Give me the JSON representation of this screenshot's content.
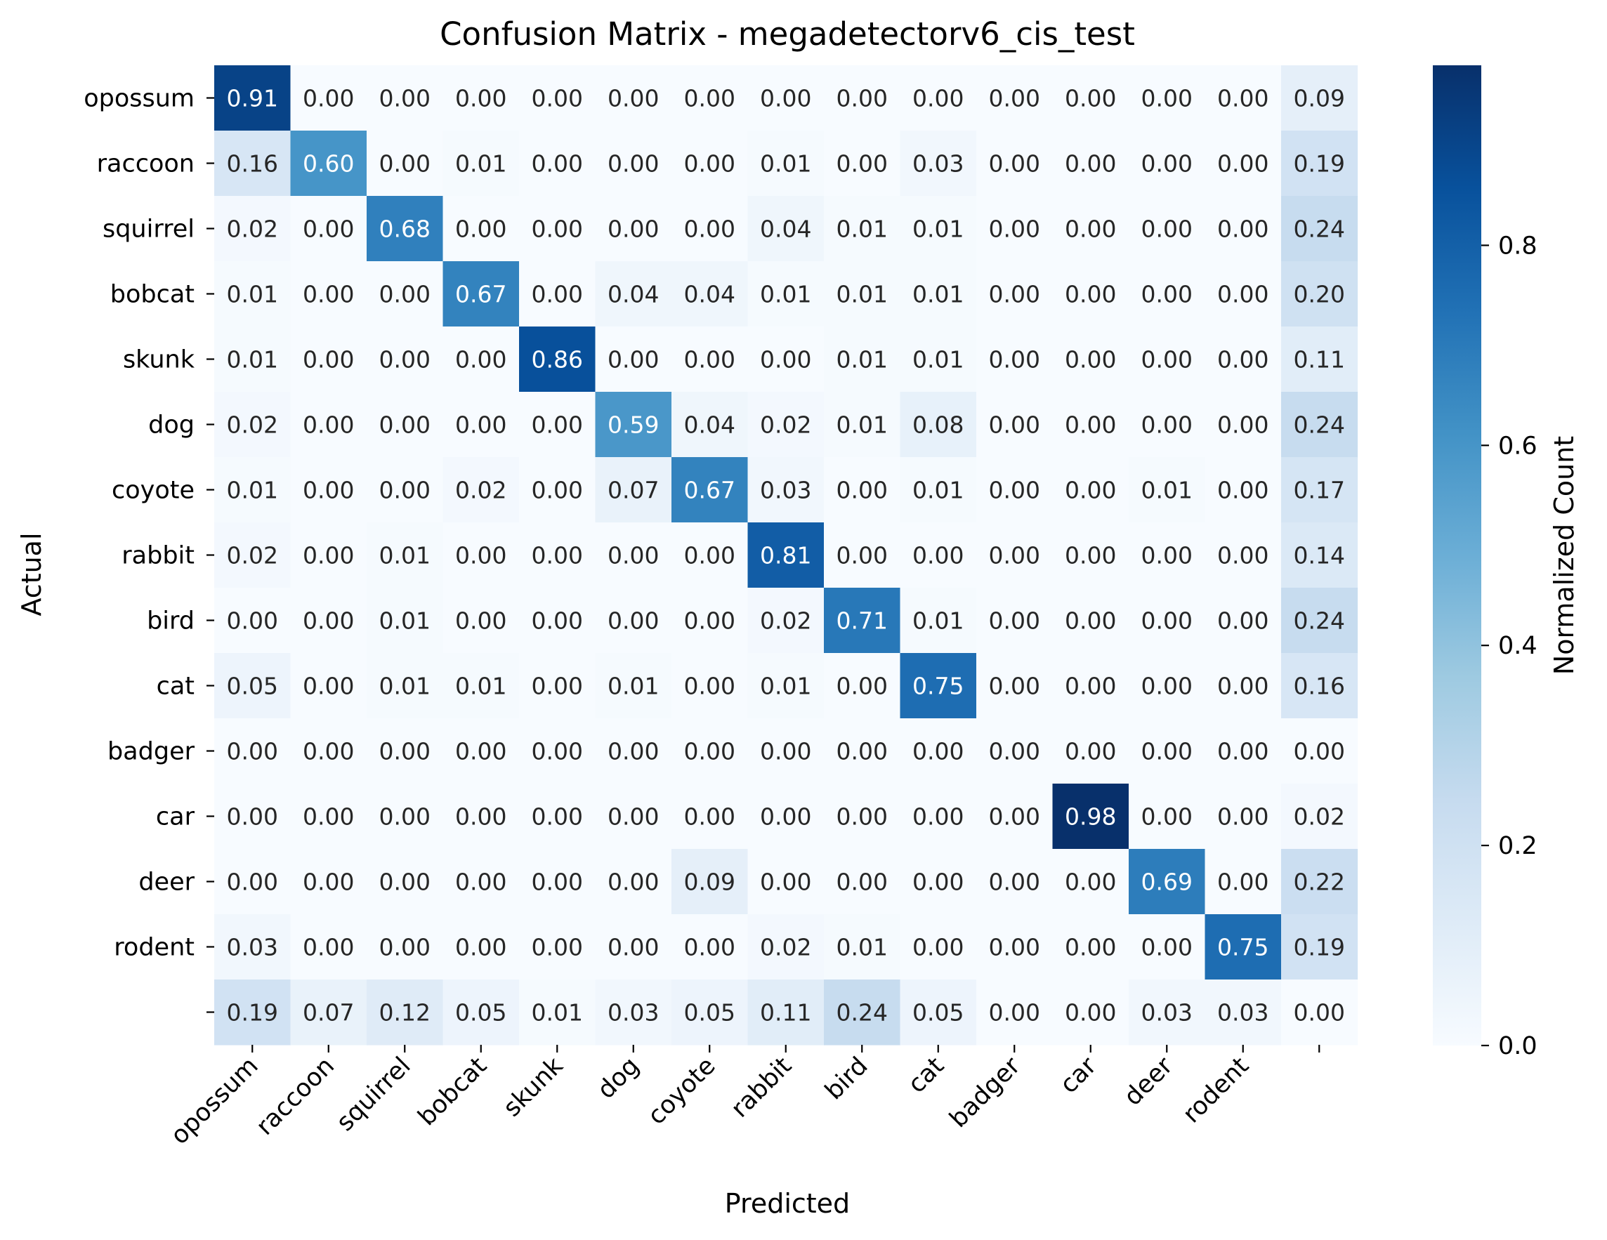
{
  "chart_data": {
    "type": "heatmap",
    "title": "Confusion Matrix - megadetectorv6_cis_test",
    "xlabel": "Predicted",
    "ylabel": "Actual",
    "colorbar_label": "Normalized Count",
    "colormap": "Blues",
    "vmin": 0.0,
    "vmax": 0.98,
    "colorbar_ticks": [
      "0.0",
      "0.2",
      "0.4",
      "0.6",
      "0.8"
    ],
    "row_labels": [
      "opossum",
      "raccoon",
      "squirrel",
      "bobcat",
      "skunk",
      "dog",
      "coyote",
      "rabbit",
      "bird",
      "cat",
      "badger",
      "car",
      "deer",
      "rodent",
      ""
    ],
    "col_labels": [
      "opossum",
      "raccoon",
      "squirrel",
      "bobcat",
      "skunk",
      "dog",
      "coyote",
      "rabbit",
      "bird",
      "cat",
      "badger",
      "car",
      "deer",
      "rodent",
      ""
    ],
    "values": [
      [
        0.91,
        0.0,
        0.0,
        0.0,
        0.0,
        0.0,
        0.0,
        0.0,
        0.0,
        0.0,
        0.0,
        0.0,
        0.0,
        0.0,
        0.09
      ],
      [
        0.16,
        0.6,
        0.0,
        0.01,
        0.0,
        0.0,
        0.0,
        0.01,
        0.0,
        0.03,
        0.0,
        0.0,
        0.0,
        0.0,
        0.19
      ],
      [
        0.02,
        0.0,
        0.68,
        0.0,
        0.0,
        0.0,
        0.0,
        0.04,
        0.01,
        0.01,
        0.0,
        0.0,
        0.0,
        0.0,
        0.24
      ],
      [
        0.01,
        0.0,
        0.0,
        0.67,
        0.0,
        0.04,
        0.04,
        0.01,
        0.01,
        0.01,
        0.0,
        0.0,
        0.0,
        0.0,
        0.2
      ],
      [
        0.01,
        0.0,
        0.0,
        0.0,
        0.86,
        0.0,
        0.0,
        0.0,
        0.01,
        0.01,
        0.0,
        0.0,
        0.0,
        0.0,
        0.11
      ],
      [
        0.02,
        0.0,
        0.0,
        0.0,
        0.0,
        0.59,
        0.04,
        0.02,
        0.01,
        0.08,
        0.0,
        0.0,
        0.0,
        0.0,
        0.24
      ],
      [
        0.01,
        0.0,
        0.0,
        0.02,
        0.0,
        0.07,
        0.67,
        0.03,
        0.0,
        0.01,
        0.0,
        0.0,
        0.01,
        0.0,
        0.17
      ],
      [
        0.02,
        0.0,
        0.01,
        0.0,
        0.0,
        0.0,
        0.0,
        0.81,
        0.0,
        0.0,
        0.0,
        0.0,
        0.0,
        0.0,
        0.14
      ],
      [
        0.0,
        0.0,
        0.01,
        0.0,
        0.0,
        0.0,
        0.0,
        0.02,
        0.71,
        0.01,
        0.0,
        0.0,
        0.0,
        0.0,
        0.24
      ],
      [
        0.05,
        0.0,
        0.01,
        0.01,
        0.0,
        0.01,
        0.0,
        0.01,
        0.0,
        0.75,
        0.0,
        0.0,
        0.0,
        0.0,
        0.16
      ],
      [
        0.0,
        0.0,
        0.0,
        0.0,
        0.0,
        0.0,
        0.0,
        0.0,
        0.0,
        0.0,
        0.0,
        0.0,
        0.0,
        0.0,
        0.0
      ],
      [
        0.0,
        0.0,
        0.0,
        0.0,
        0.0,
        0.0,
        0.0,
        0.0,
        0.0,
        0.0,
        0.0,
        0.98,
        0.0,
        0.0,
        0.02
      ],
      [
        0.0,
        0.0,
        0.0,
        0.0,
        0.0,
        0.0,
        0.09,
        0.0,
        0.0,
        0.0,
        0.0,
        0.0,
        0.69,
        0.0,
        0.22
      ],
      [
        0.03,
        0.0,
        0.0,
        0.0,
        0.0,
        0.0,
        0.0,
        0.02,
        0.01,
        0.0,
        0.0,
        0.0,
        0.0,
        0.75,
        0.19
      ],
      [
        0.19,
        0.07,
        0.12,
        0.05,
        0.01,
        0.03,
        0.05,
        0.11,
        0.24,
        0.05,
        0.0,
        0.0,
        0.03,
        0.03,
        0.0
      ]
    ]
  }
}
